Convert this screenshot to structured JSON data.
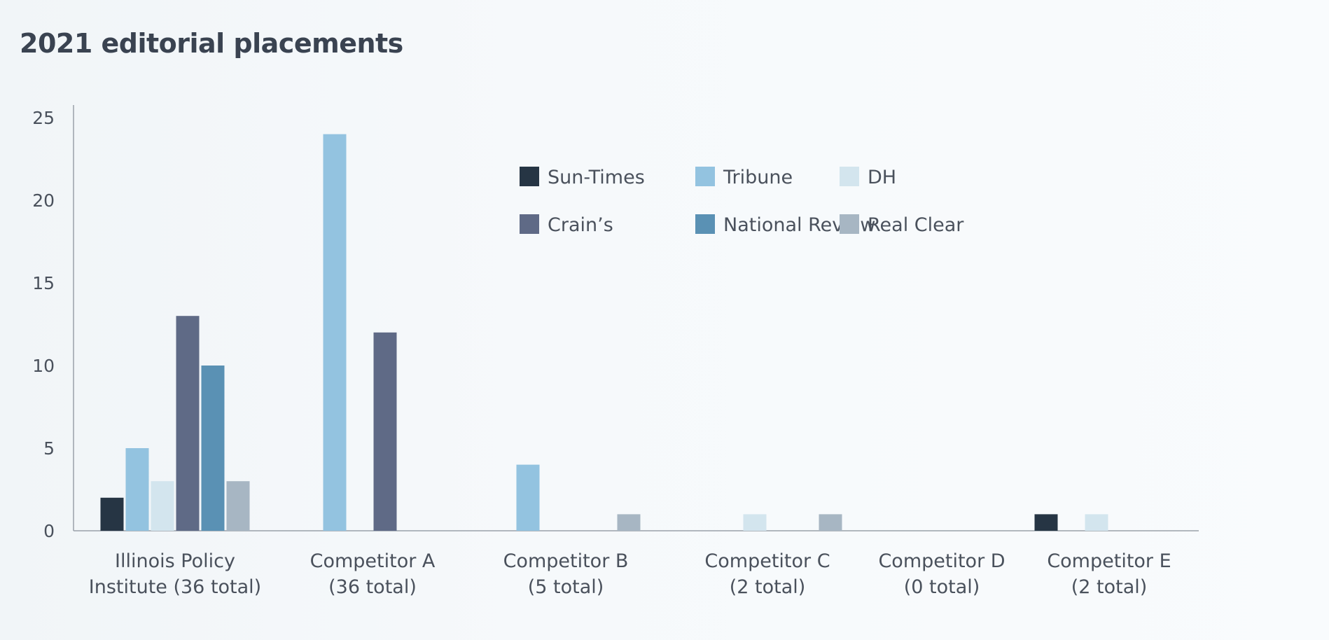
{
  "chart_data": {
    "type": "bar",
    "title": "2021 editorial placements",
    "xlabel": "",
    "ylabel": "",
    "ylim": [
      0,
      25
    ],
    "yticks": [
      "0",
      "5",
      "10",
      "15",
      "20",
      "25"
    ],
    "grid": false,
    "legend_position": "top-right",
    "categories": [
      [
        "Illinois Policy",
        "Institute (36 total)"
      ],
      [
        "Competitor A",
        "(36 total)"
      ],
      [
        "Competitor B",
        "(5 total)"
      ],
      [
        "Competitor C",
        "(2 total)"
      ],
      [
        "Competitor D",
        "(0 total)"
      ],
      [
        "Competitor E",
        "(2 total)"
      ]
    ],
    "series": [
      {
        "name": "Sun-Times",
        "color": "#263544",
        "values": [
          2,
          0,
          0,
          0,
          0,
          1
        ]
      },
      {
        "name": "Tribune",
        "color": "#93c3e0",
        "values": [
          5,
          24,
          4,
          0,
          0,
          0
        ]
      },
      {
        "name": "DH",
        "color": "#d3e5ee",
        "values": [
          3,
          0,
          0,
          1,
          0,
          1
        ]
      },
      {
        "name": "Crain’s",
        "color": "#5f6a86",
        "values": [
          13,
          12,
          0,
          0,
          0,
          0
        ]
      },
      {
        "name": "National Review",
        "color": "#5a91b4",
        "values": [
          10,
          0,
          0,
          0,
          0,
          0
        ]
      },
      {
        "name": "Real Clear",
        "color": "#a7b6c3",
        "values": [
          3,
          0,
          1,
          1,
          0,
          0
        ]
      }
    ],
    "colors": {
      "axis": "#9aa1a9",
      "text": "#4a515c",
      "title": "#3a4351"
    }
  }
}
